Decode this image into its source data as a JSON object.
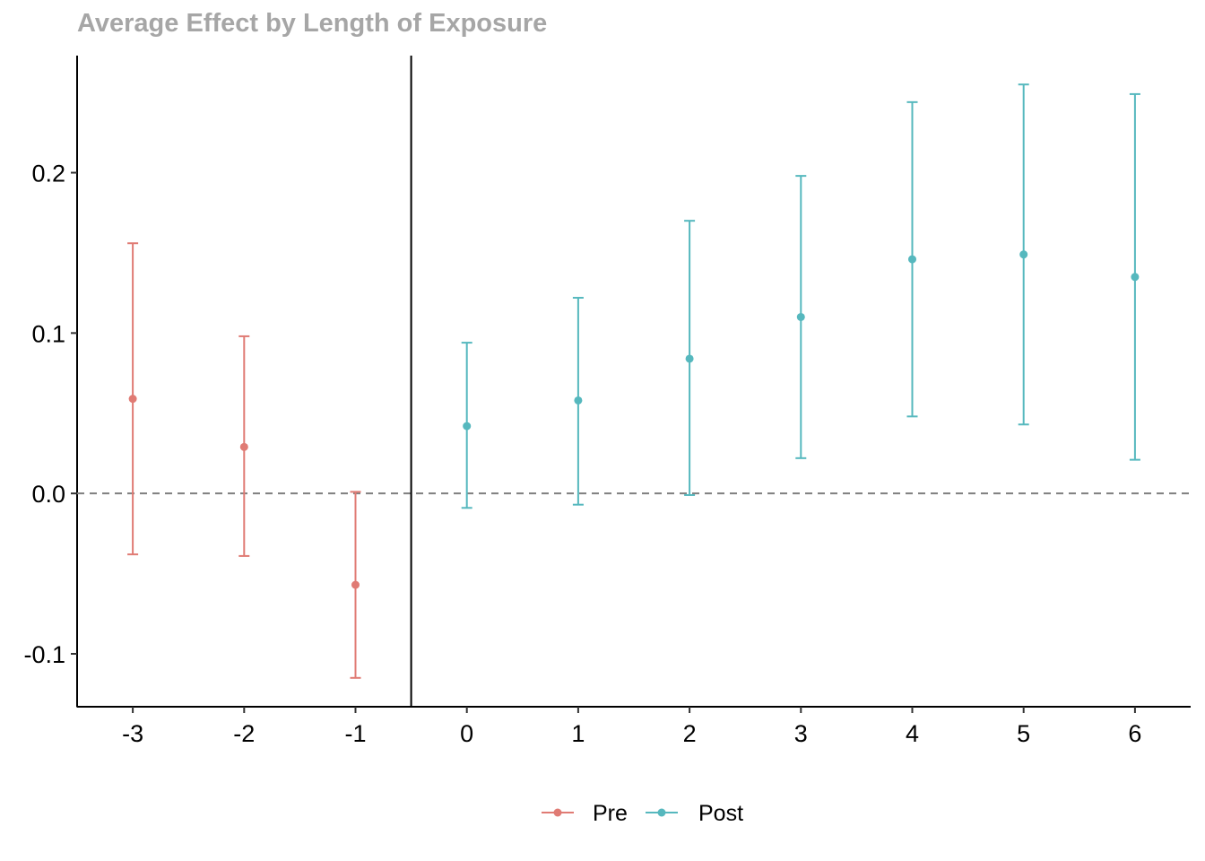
{
  "chart_data": {
    "type": "scatter",
    "subtype": "errorbar",
    "title": "Average Effect by Length of Exposure",
    "xlabel": "",
    "ylabel": "",
    "x_ticks": [
      "-3",
      "-2",
      "-1",
      "0",
      "1",
      "2",
      "3",
      "4",
      "5",
      "6"
    ],
    "y_ticks": [
      "-0.1",
      "0.0",
      "0.1",
      "0.2"
    ],
    "x_range": [
      -3.5,
      6.5
    ],
    "y_range": [
      -0.133,
      0.273
    ],
    "reference_line": {
      "y": 0.0,
      "style": "dashed"
    },
    "treatment_line": {
      "x": -0.5
    },
    "grid": false,
    "legend_position": "bottom",
    "series": [
      {
        "name": "Pre",
        "color": "#E07B74",
        "points": [
          {
            "x": -3,
            "y": 0.059,
            "lower": -0.038,
            "upper": 0.156
          },
          {
            "x": -2,
            "y": 0.029,
            "lower": -0.039,
            "upper": 0.098
          },
          {
            "x": -1,
            "y": -0.057,
            "lower": -0.115,
            "upper": 0.001
          }
        ]
      },
      {
        "name": "Post",
        "color": "#56B8BE",
        "points": [
          {
            "x": 0,
            "y": 0.042,
            "lower": -0.009,
            "upper": 0.094
          },
          {
            "x": 1,
            "y": 0.058,
            "lower": -0.007,
            "upper": 0.122
          },
          {
            "x": 2,
            "y": 0.084,
            "lower": -0.001,
            "upper": 0.17
          },
          {
            "x": 3,
            "y": 0.11,
            "lower": 0.022,
            "upper": 0.198
          },
          {
            "x": 4,
            "y": 0.146,
            "lower": 0.048,
            "upper": 0.244
          },
          {
            "x": 5,
            "y": 0.149,
            "lower": 0.043,
            "upper": 0.255
          },
          {
            "x": 6,
            "y": 0.135,
            "lower": 0.021,
            "upper": 0.249
          }
        ]
      }
    ]
  }
}
